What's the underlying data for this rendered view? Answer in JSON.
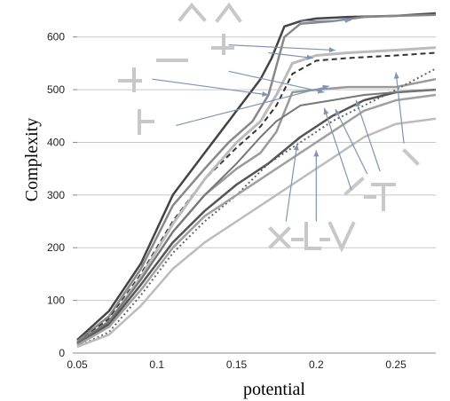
{
  "chart_data": {
    "type": "line",
    "xlabel": "potential",
    "ylabel": "Complexity",
    "xlim": [
      0.05,
      0.275
    ],
    "ylim": [
      0,
      650
    ],
    "x_ticks": [
      "0.05",
      "0.1",
      "0.15",
      "0.2",
      "0.25"
    ],
    "x_tick_values": [
      0.05,
      0.1,
      0.15,
      0.2,
      0.25
    ],
    "y_ticks": [
      "0",
      "100",
      "200",
      "300",
      "400",
      "500",
      "600"
    ],
    "y_tick_values": [
      0,
      100,
      200,
      300,
      400,
      500,
      600
    ],
    "grid": "horizontal",
    "series": [
      {
        "color": "#444444",
        "width": 2.5,
        "dash": "",
        "points": [
          [
            0.05,
            25
          ],
          [
            0.07,
            80
          ],
          [
            0.09,
            170
          ],
          [
            0.11,
            300
          ],
          [
            0.13,
            380
          ],
          [
            0.145,
            440
          ],
          [
            0.155,
            480
          ],
          [
            0.165,
            520
          ],
          [
            0.172,
            560
          ],
          [
            0.18,
            620
          ],
          [
            0.19,
            630
          ],
          [
            0.2,
            635
          ],
          [
            0.22,
            638
          ],
          [
            0.25,
            640
          ],
          [
            0.275,
            645
          ]
        ]
      },
      {
        "color": "#888888",
        "width": 2.5,
        "dash": "",
        "points": [
          [
            0.05,
            22
          ],
          [
            0.07,
            70
          ],
          [
            0.09,
            160
          ],
          [
            0.11,
            280
          ],
          [
            0.13,
            350
          ],
          [
            0.145,
            400
          ],
          [
            0.16,
            440
          ],
          [
            0.17,
            490
          ],
          [
            0.18,
            600
          ],
          [
            0.19,
            625
          ],
          [
            0.21,
            630
          ],
          [
            0.23,
            638
          ],
          [
            0.25,
            640
          ],
          [
            0.275,
            642
          ]
        ]
      },
      {
        "color": "#333333",
        "width": 2,
        "dash": "6,4",
        "points": [
          [
            0.05,
            20
          ],
          [
            0.07,
            65
          ],
          [
            0.09,
            150
          ],
          [
            0.11,
            250
          ],
          [
            0.13,
            330
          ],
          [
            0.15,
            390
          ],
          [
            0.165,
            430
          ],
          [
            0.175,
            470
          ],
          [
            0.185,
            530
          ],
          [
            0.2,
            555
          ],
          [
            0.22,
            560
          ],
          [
            0.25,
            565
          ],
          [
            0.275,
            570
          ]
        ]
      },
      {
        "color": "#bbbbbb",
        "width": 3,
        "dash": "",
        "points": [
          [
            0.05,
            18
          ],
          [
            0.07,
            60
          ],
          [
            0.09,
            145
          ],
          [
            0.11,
            245
          ],
          [
            0.13,
            330
          ],
          [
            0.15,
            400
          ],
          [
            0.165,
            440
          ],
          [
            0.175,
            490
          ],
          [
            0.185,
            550
          ],
          [
            0.2,
            565
          ],
          [
            0.22,
            570
          ],
          [
            0.25,
            575
          ],
          [
            0.275,
            580
          ]
        ]
      },
      {
        "color": "#999999",
        "width": 2.5,
        "dash": "",
        "points": [
          [
            0.05,
            20
          ],
          [
            0.07,
            60
          ],
          [
            0.09,
            140
          ],
          [
            0.11,
            230
          ],
          [
            0.13,
            300
          ],
          [
            0.15,
            350
          ],
          [
            0.165,
            380
          ],
          [
            0.175,
            420
          ],
          [
            0.185,
            495
          ],
          [
            0.2,
            500
          ],
          [
            0.22,
            505
          ],
          [
            0.25,
            505
          ],
          [
            0.275,
            520
          ]
        ]
      },
      {
        "color": "#666666",
        "width": 2,
        "dash": "2,3",
        "points": [
          [
            0.05,
            12
          ],
          [
            0.07,
            40
          ],
          [
            0.09,
            110
          ],
          [
            0.11,
            190
          ],
          [
            0.13,
            250
          ],
          [
            0.15,
            300
          ],
          [
            0.17,
            360
          ],
          [
            0.19,
            400
          ],
          [
            0.21,
            440
          ],
          [
            0.23,
            470
          ],
          [
            0.25,
            500
          ],
          [
            0.275,
            540
          ]
        ]
      },
      {
        "color": "#555555",
        "width": 2.5,
        "dash": "",
        "points": [
          [
            0.05,
            18
          ],
          [
            0.07,
            55
          ],
          [
            0.09,
            130
          ],
          [
            0.11,
            210
          ],
          [
            0.13,
            270
          ],
          [
            0.15,
            320
          ],
          [
            0.17,
            360
          ],
          [
            0.19,
            410
          ],
          [
            0.21,
            450
          ],
          [
            0.23,
            480
          ],
          [
            0.25,
            495
          ],
          [
            0.275,
            500
          ]
        ]
      },
      {
        "color": "#a0a0a0",
        "width": 2.5,
        "dash": "",
        "points": [
          [
            0.05,
            15
          ],
          [
            0.07,
            50
          ],
          [
            0.09,
            120
          ],
          [
            0.11,
            200
          ],
          [
            0.13,
            260
          ],
          [
            0.15,
            300
          ],
          [
            0.17,
            340
          ],
          [
            0.19,
            380
          ],
          [
            0.21,
            420
          ],
          [
            0.23,
            460
          ],
          [
            0.25,
            480
          ],
          [
            0.275,
            490
          ]
        ]
      },
      {
        "color": "#bcbcbc",
        "width": 2.5,
        "dash": "",
        "points": [
          [
            0.05,
            12
          ],
          [
            0.07,
            35
          ],
          [
            0.09,
            90
          ],
          [
            0.11,
            160
          ],
          [
            0.13,
            210
          ],
          [
            0.15,
            250
          ],
          [
            0.17,
            290
          ],
          [
            0.19,
            330
          ],
          [
            0.21,
            370
          ],
          [
            0.23,
            410
          ],
          [
            0.25,
            435
          ],
          [
            0.275,
            445
          ]
        ]
      },
      {
        "color": "#777777",
        "width": 2,
        "dash": "",
        "points": [
          [
            0.05,
            20
          ],
          [
            0.07,
            60
          ],
          [
            0.09,
            140
          ],
          [
            0.11,
            230
          ],
          [
            0.13,
            300
          ],
          [
            0.15,
            360
          ],
          [
            0.165,
            410
          ],
          [
            0.175,
            440
          ],
          [
            0.19,
            470
          ],
          [
            0.21,
            480
          ],
          [
            0.23,
            490
          ],
          [
            0.25,
            495
          ],
          [
            0.275,
            500
          ]
        ]
      }
    ],
    "annotation_arrows": [
      {
        "from": [
          0.19,
          630
        ],
        "to": [
          0.222,
          632
        ]
      },
      {
        "from": [
          0.145,
          585
        ],
        "to": [
          0.212,
          575
        ]
      },
      {
        "from": [
          0.17,
          570
        ],
        "to": [
          0.198,
          560
        ]
      },
      {
        "from": [
          0.145,
          535
        ],
        "to": [
          0.205,
          495
        ]
      },
      {
        "from": [
          0.097,
          520
        ],
        "to": [
          0.17,
          490
        ]
      },
      {
        "from": [
          0.112,
          432
        ],
        "to": [
          0.208,
          507
        ]
      },
      {
        "from": [
          0.255,
          398
        ],
        "to": [
          0.25,
          533
        ]
      },
      {
        "from": [
          0.24,
          345
        ],
        "to": [
          0.225,
          480
        ]
      },
      {
        "from": [
          0.232,
          340
        ],
        "to": [
          0.212,
          463
        ]
      },
      {
        "from": [
          0.222,
          310
        ],
        "to": [
          0.205,
          465
        ]
      },
      {
        "from": [
          0.2,
          250
        ],
        "to": [
          0.2,
          385
        ]
      },
      {
        "from": [
          0.181,
          250
        ],
        "to": [
          0.188,
          397
        ]
      }
    ]
  }
}
